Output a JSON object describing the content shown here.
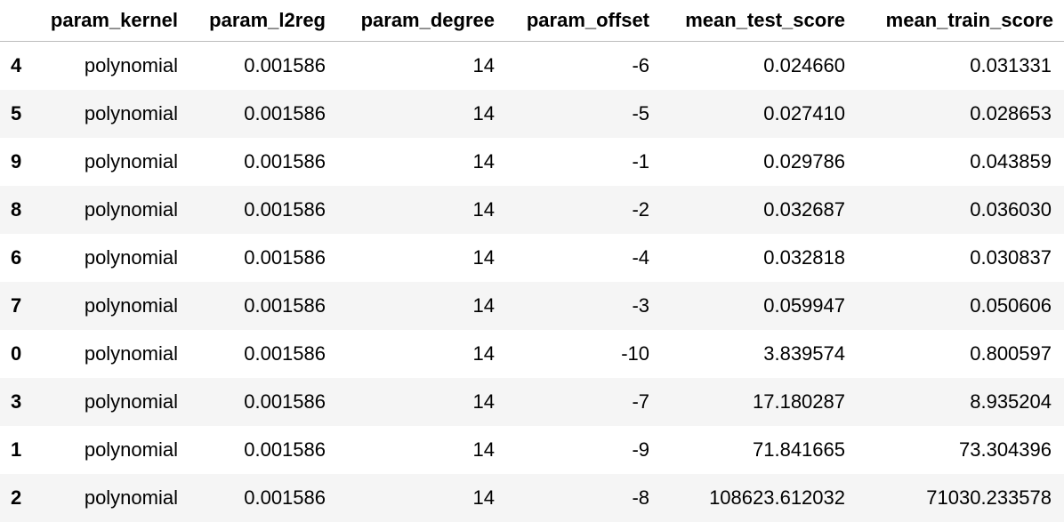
{
  "table": {
    "columns": [
      "",
      "param_kernel",
      "param_l2reg",
      "param_degree",
      "param_offset",
      "mean_test_score",
      "mean_train_score"
    ],
    "rows": [
      {
        "index": "4",
        "param_kernel": "polynomial",
        "param_l2reg": "0.001586",
        "param_degree": "14",
        "param_offset": "-6",
        "mean_test_score": "0.024660",
        "mean_train_score": "0.031331"
      },
      {
        "index": "5",
        "param_kernel": "polynomial",
        "param_l2reg": "0.001586",
        "param_degree": "14",
        "param_offset": "-5",
        "mean_test_score": "0.027410",
        "mean_train_score": "0.028653"
      },
      {
        "index": "9",
        "param_kernel": "polynomial",
        "param_l2reg": "0.001586",
        "param_degree": "14",
        "param_offset": "-1",
        "mean_test_score": "0.029786",
        "mean_train_score": "0.043859"
      },
      {
        "index": "8",
        "param_kernel": "polynomial",
        "param_l2reg": "0.001586",
        "param_degree": "14",
        "param_offset": "-2",
        "mean_test_score": "0.032687",
        "mean_train_score": "0.036030"
      },
      {
        "index": "6",
        "param_kernel": "polynomial",
        "param_l2reg": "0.001586",
        "param_degree": "14",
        "param_offset": "-4",
        "mean_test_score": "0.032818",
        "mean_train_score": "0.030837"
      },
      {
        "index": "7",
        "param_kernel": "polynomial",
        "param_l2reg": "0.001586",
        "param_degree": "14",
        "param_offset": "-3",
        "mean_test_score": "0.059947",
        "mean_train_score": "0.050606"
      },
      {
        "index": "0",
        "param_kernel": "polynomial",
        "param_l2reg": "0.001586",
        "param_degree": "14",
        "param_offset": "-10",
        "mean_test_score": "3.839574",
        "mean_train_score": "0.800597"
      },
      {
        "index": "3",
        "param_kernel": "polynomial",
        "param_l2reg": "0.001586",
        "param_degree": "14",
        "param_offset": "-7",
        "mean_test_score": "17.180287",
        "mean_train_score": "8.935204"
      },
      {
        "index": "1",
        "param_kernel": "polynomial",
        "param_l2reg": "0.001586",
        "param_degree": "14",
        "param_offset": "-9",
        "mean_test_score": "71.841665",
        "mean_train_score": "73.304396"
      },
      {
        "index": "2",
        "param_kernel": "polynomial",
        "param_l2reg": "0.001586",
        "param_degree": "14",
        "param_offset": "-8",
        "mean_test_score": "108623.612032",
        "mean_train_score": "71030.233578"
      }
    ]
  },
  "colors": {
    "stripe": "#f5f5f5",
    "header_rule": "#bdbdbd",
    "text": "#000000"
  }
}
